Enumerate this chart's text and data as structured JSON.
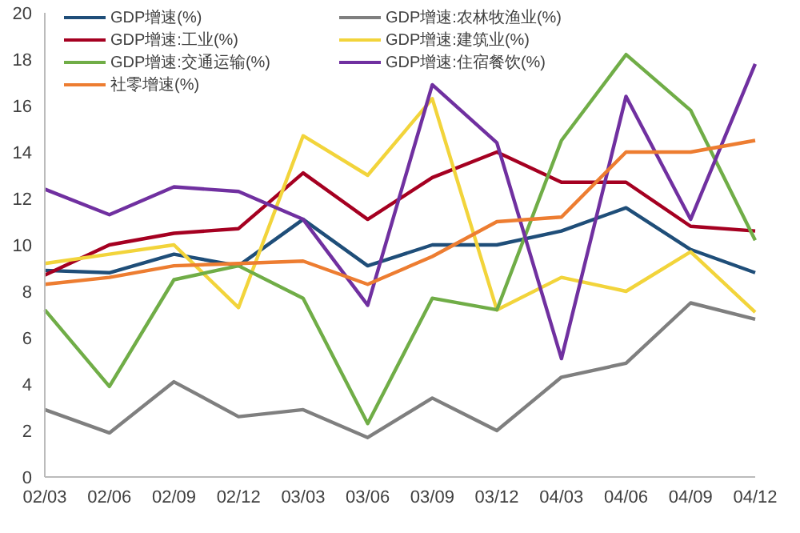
{
  "chart_data": {
    "type": "line",
    "categories": [
      "02/03",
      "02/06",
      "02/09",
      "02/12",
      "03/03",
      "03/06",
      "03/09",
      "03/12",
      "04/03",
      "04/06",
      "04/09",
      "04/12"
    ],
    "series": [
      {
        "name": "GDP增速(%)",
        "color": "#1f4e79",
        "values": [
          8.9,
          8.8,
          9.6,
          9.1,
          11.1,
          9.1,
          10.0,
          10.0,
          10.6,
          11.6,
          9.8,
          8.8
        ]
      },
      {
        "name": "GDP增速:农林牧渔业(%)",
        "color": "#7f7f7f",
        "values": [
          2.9,
          1.9,
          4.1,
          2.6,
          2.9,
          1.7,
          3.4,
          2.0,
          4.3,
          4.9,
          7.5,
          6.8
        ]
      },
      {
        "name": "GDP增速:工业(%)",
        "color": "#a50021",
        "values": [
          8.7,
          10.0,
          10.5,
          10.7,
          13.1,
          11.1,
          12.9,
          14.0,
          12.7,
          12.7,
          10.8,
          10.6
        ]
      },
      {
        "name": "GDP增速:建筑业(%)",
        "color": "#f2d43b",
        "values": [
          9.2,
          9.6,
          10.0,
          7.3,
          14.7,
          13.0,
          16.3,
          7.2,
          8.6,
          8.0,
          9.7,
          7.1
        ]
      },
      {
        "name": "GDP增速:交通运输(%)",
        "color": "#70ad47",
        "values": [
          7.2,
          3.9,
          8.5,
          9.1,
          7.7,
          2.3,
          7.7,
          7.2,
          14.5,
          18.2,
          15.8,
          10.2
        ]
      },
      {
        "name": "GDP增速:住宿餐饮(%)",
        "color": "#7030a0",
        "values": [
          12.4,
          11.3,
          12.5,
          12.3,
          11.1,
          7.4,
          16.9,
          14.4,
          5.1,
          16.4,
          11.1,
          17.8
        ]
      },
      {
        "name": "社零增速(%)",
        "color": "#ed7d31",
        "values": [
          8.3,
          8.6,
          9.1,
          9.2,
          9.3,
          8.3,
          9.5,
          11.0,
          11.2,
          14.0,
          14.0,
          14.5
        ]
      }
    ],
    "ylim": [
      0,
      20
    ],
    "yticks": [
      0,
      2,
      4,
      6,
      8,
      10,
      12,
      14,
      16,
      18,
      20
    ],
    "grid": false,
    "legend": "top",
    "marker": "none",
    "line_style": "solid"
  }
}
